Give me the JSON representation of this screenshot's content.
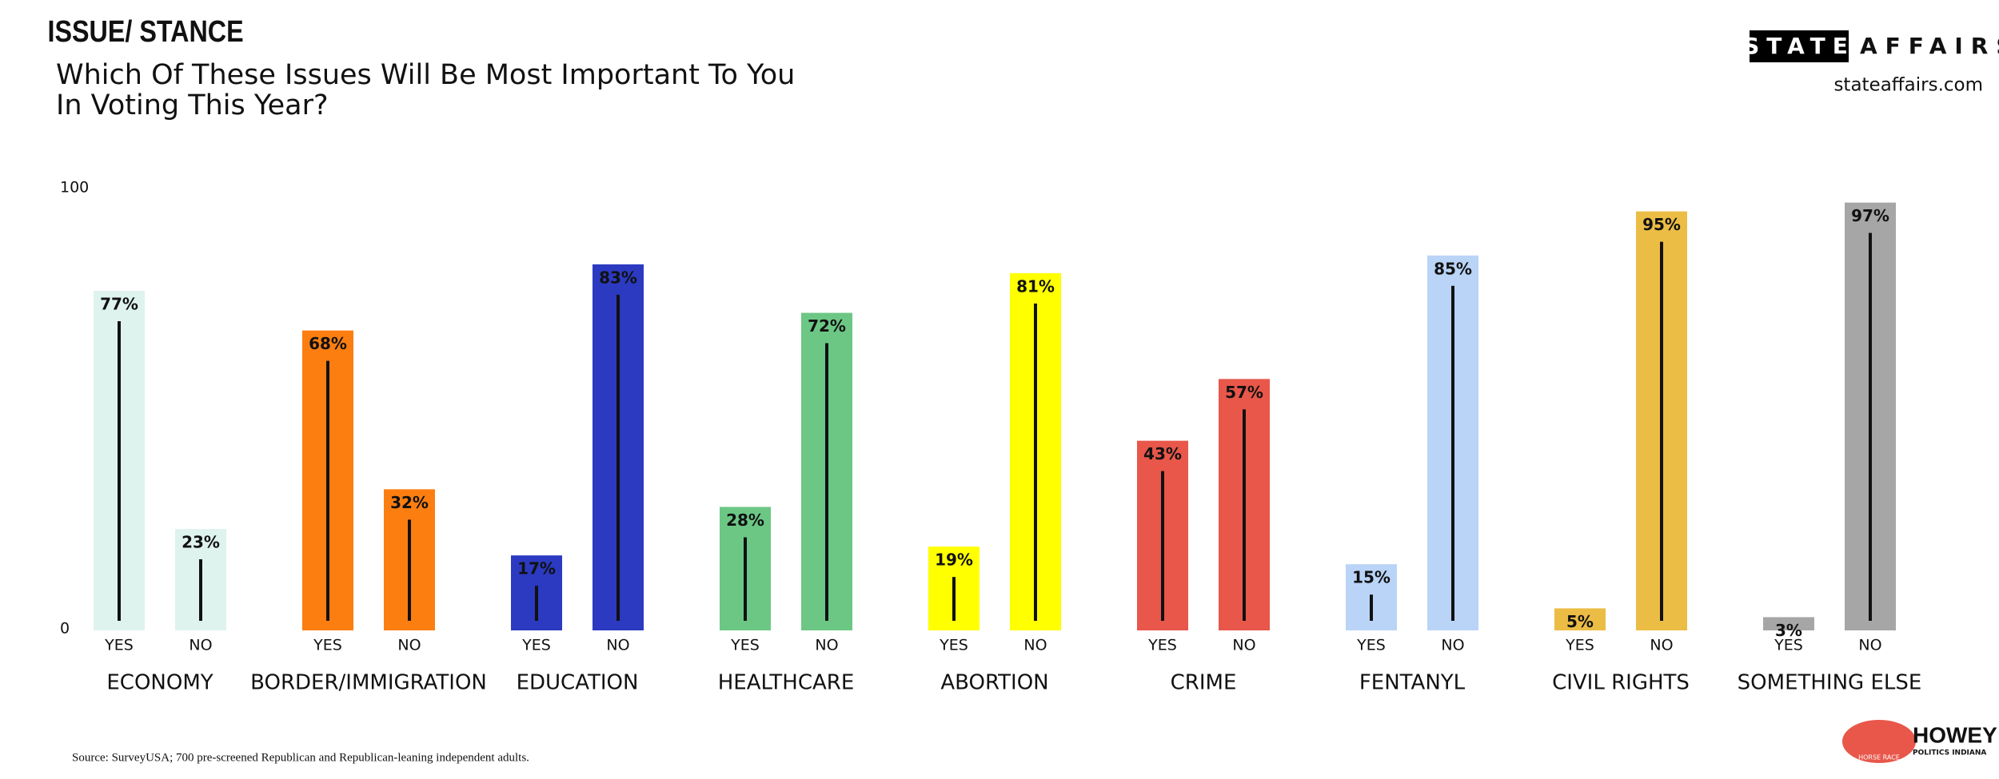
{
  "chart_data": {
    "type": "bar",
    "kicker": "ISSUE/ STANCE",
    "title_lines": [
      "Which  Of These Issues Will Be Most Important To You",
      "In Voting This Year?"
    ],
    "categories": [
      "ECONOMY",
      "BORDER/IMMIGRATION",
      "EDUCATION",
      "HEALTHCARE",
      "ABORTION",
      "CRIME",
      "FENTANYL",
      "CIVIL RIGHTS",
      "SOMETHING ELSE"
    ],
    "colors": [
      "#dff3ee",
      "#fd7e10",
      "#2b3ac1",
      "#6cc785",
      "#ffff00",
      "#e8574a",
      "#b9d4f7",
      "#ecbd45",
      "#a6a6a6"
    ],
    "series": [
      {
        "name": "YES",
        "values": [
          77,
          68,
          17,
          28,
          19,
          43,
          15,
          5,
          3
        ],
        "value_labels": [
          "77%",
          "68%",
          "17%",
          "28%",
          "19%",
          "43%",
          "15%",
          "5%",
          "3%"
        ]
      },
      {
        "name": "NO",
        "values": [
          23,
          32,
          83,
          72,
          81,
          57,
          85,
          95,
          97
        ],
        "value_labels": [
          "23%",
          "32%",
          "83%",
          "72%",
          "81%",
          "57%",
          "85%",
          "95%",
          "97%"
        ]
      }
    ],
    "ylim": [
      0,
      100
    ],
    "yticks": [
      0,
      100
    ],
    "grid": false,
    "source": "Source: SurveyUSA; 700 pre-screened Republican and Republican-leaning independent adults."
  },
  "brand": {
    "name_box": "STATE",
    "name_rest": "AFFAIRS",
    "url": "stateaffairs.com"
  },
  "logo": {
    "name": "HOWEY",
    "sub": "POLITICS INDIANA",
    "ribbon": "HORSE RACE"
  }
}
